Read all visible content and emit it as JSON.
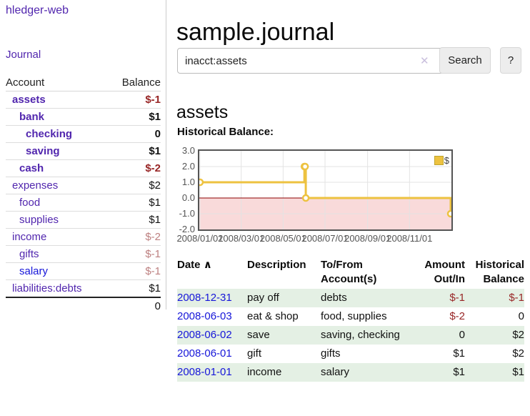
{
  "app": {
    "brand": "hledger-web",
    "nav_journal": "Journal"
  },
  "theme": {
    "accent_purple": "#5126ae",
    "link_blue": "#1616d9",
    "negative_red": "#982626",
    "negative_muted_red": "#bd8080",
    "row_green": "#e4f0e4",
    "chart_line_gold": "#edc240",
    "chart_zero_line": "#8b0000",
    "chart_negative_fill": "#f9dada"
  },
  "sidebar": {
    "header": {
      "account": "Account",
      "balance": "Balance"
    },
    "accounts": [
      {
        "name": "assets",
        "balance": "$-1"
      },
      {
        "name": "bank",
        "balance": "$1"
      },
      {
        "name": "checking",
        "balance": "0"
      },
      {
        "name": "saving",
        "balance": "$1"
      },
      {
        "name": "cash",
        "balance": "$-2"
      },
      {
        "name": "expenses",
        "balance": "$2"
      },
      {
        "name": "food",
        "balance": "$1"
      },
      {
        "name": "supplies",
        "balance": "$1"
      },
      {
        "name": "income",
        "balance": "$-2"
      },
      {
        "name": "gifts",
        "balance": "$-1"
      },
      {
        "name": "salary",
        "balance": "$-1"
      },
      {
        "name": "liabilities:debts",
        "balance": "$1"
      }
    ],
    "total": "0"
  },
  "main": {
    "title": "sample.journal",
    "search": {
      "value": "inacct:assets",
      "clear_icon": "✕",
      "search_label": "Search",
      "help_label": "?"
    },
    "account_heading": "assets",
    "chart_title": "Historical Balance:"
  },
  "register": {
    "columns": {
      "date": "Date",
      "sort_indicator": "∧",
      "description": "Description",
      "tofrom": "To/From Account(s)",
      "amount": "Amount Out/In",
      "historical": "Historical Balance"
    },
    "rows": [
      {
        "date": "2008-12-31",
        "description": "pay off",
        "accounts": "debts",
        "amount": "$-1",
        "balance": "$-1"
      },
      {
        "date": "2008-06-03",
        "description": "eat & shop",
        "accounts": "food, supplies",
        "amount": "$-2",
        "balance": "0"
      },
      {
        "date": "2008-06-02",
        "description": "save",
        "accounts": "saving, checking",
        "amount": "0",
        "balance": "$2"
      },
      {
        "date": "2008-06-01",
        "description": "gift",
        "accounts": "gifts",
        "amount": "$1",
        "balance": "$2"
      },
      {
        "date": "2008-01-01",
        "description": "income",
        "accounts": "salary",
        "amount": "$1",
        "balance": "$1"
      }
    ]
  },
  "chart_data": {
    "type": "line",
    "style": "steps-with-markers",
    "series": [
      {
        "name": "$",
        "points": [
          {
            "date": "2008-01-01",
            "value": 1
          },
          {
            "date": "2008-06-01",
            "value": 2
          },
          {
            "date": "2008-06-02",
            "value": 2
          },
          {
            "date": "2008-06-03",
            "value": 0
          },
          {
            "date": "2008-12-31",
            "value": -1
          }
        ]
      }
    ],
    "x_range": [
      "2008-01-01",
      "2008-12-31"
    ],
    "ylim": [
      -2,
      3
    ],
    "yticks": [
      {
        "value": 3,
        "label": "3.0"
      },
      {
        "value": 2,
        "label": "2.0"
      },
      {
        "value": 1,
        "label": "1.0"
      },
      {
        "value": 0,
        "label": "0.0"
      },
      {
        "value": -1,
        "label": "-1.0"
      },
      {
        "value": -2,
        "label": "-2.0"
      }
    ],
    "xticks": [
      {
        "date": "2008-01-01",
        "label": "2008/01/01"
      },
      {
        "date": "2008-03-01",
        "label": "2008/03/01"
      },
      {
        "date": "2008-05-01",
        "label": "2008/05/01"
      },
      {
        "date": "2008-07-01",
        "label": "2008/07/01"
      },
      {
        "date": "2008-09-01",
        "label": "2008/09/01"
      },
      {
        "date": "2008-11-01",
        "label": "2008/11/01"
      }
    ],
    "legend": {
      "position": "top-right",
      "entries": [
        "$"
      ]
    },
    "grid": true,
    "negative_region_shaded": true,
    "title": "Historical Balance:"
  }
}
